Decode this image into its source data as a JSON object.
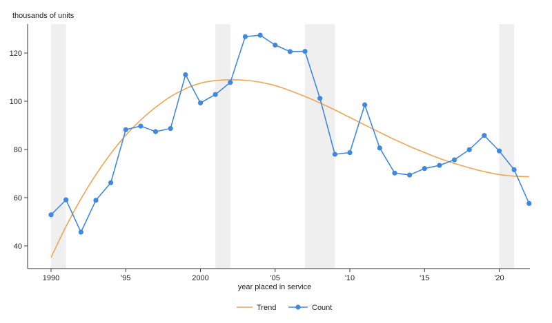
{
  "chart_data": {
    "type": "line",
    "ylabel": "thousands of units",
    "xlabel": "year placed in service",
    "xlim": [
      1989,
      2023
    ],
    "ylim": [
      30,
      131
    ],
    "x_ticks": [
      1990,
      1995,
      2000,
      2005,
      2010,
      2015,
      2020
    ],
    "x_tick_labels": [
      "1990",
      "'95",
      "2000",
      "'05",
      "'10",
      "'15",
      "'20"
    ],
    "y_ticks": [
      40,
      60,
      80,
      100,
      120
    ],
    "y_tick_labels": [
      "40",
      "60",
      "80",
      "100",
      "120"
    ],
    "grid": false,
    "recession_bands": [
      [
        1990,
        1991
      ],
      [
        2001,
        2002
      ],
      [
        2007,
        2009
      ],
      [
        2020,
        2021
      ]
    ],
    "series": [
      {
        "name": "Trend",
        "color": "#F0A553",
        "style": "smooth-line",
        "x": [
          1990,
          1991,
          1992,
          1993,
          1994,
          1995,
          1996,
          1997,
          1998,
          1999,
          2000,
          2001,
          2002,
          2003,
          2004,
          2005,
          2006,
          2007,
          2008,
          2009,
          2010,
          2011,
          2012,
          2013,
          2014,
          2015,
          2016,
          2017,
          2018,
          2019,
          2020,
          2021,
          2022
        ],
        "values": [
          35.2,
          48.1,
          59.5,
          69.5,
          78.3,
          85.9,
          92.2,
          97.5,
          101.9,
          105.2,
          107.5,
          108.6,
          108.9,
          108.7,
          107.9,
          106.5,
          104.4,
          102.0,
          99.3,
          96.4,
          93.3,
          90.2,
          87.1,
          84.1,
          81.3,
          78.7,
          76.3,
          74.2,
          72.4,
          70.8,
          69.6,
          68.9,
          68.7
        ]
      },
      {
        "name": "Count",
        "color": "#3F88DE",
        "style": "line-markers",
        "x": [
          1990,
          1991,
          1992,
          1993,
          1994,
          1995,
          1996,
          1997,
          1998,
          1999,
          2000,
          2001,
          2002,
          2003,
          2004,
          2005,
          2006,
          2007,
          2008,
          2009,
          2010,
          2011,
          2012,
          2013,
          2014,
          2015,
          2016,
          2017,
          2018,
          2019,
          2020,
          2021,
          2022
        ],
        "values": [
          52.9,
          59.1,
          45.7,
          58.9,
          66.2,
          88.2,
          89.7,
          87.4,
          88.7,
          111.0,
          99.3,
          102.8,
          107.8,
          126.8,
          127.4,
          123.3,
          120.6,
          120.7,
          101.2,
          78.0,
          78.7,
          98.5,
          80.6,
          70.2,
          69.4,
          72.1,
          73.4,
          75.7,
          79.9,
          85.8,
          79.4,
          71.6,
          57.6
        ]
      }
    ],
    "legend": {
      "position": "bottom-center",
      "items": [
        "Trend",
        "Count"
      ]
    }
  }
}
